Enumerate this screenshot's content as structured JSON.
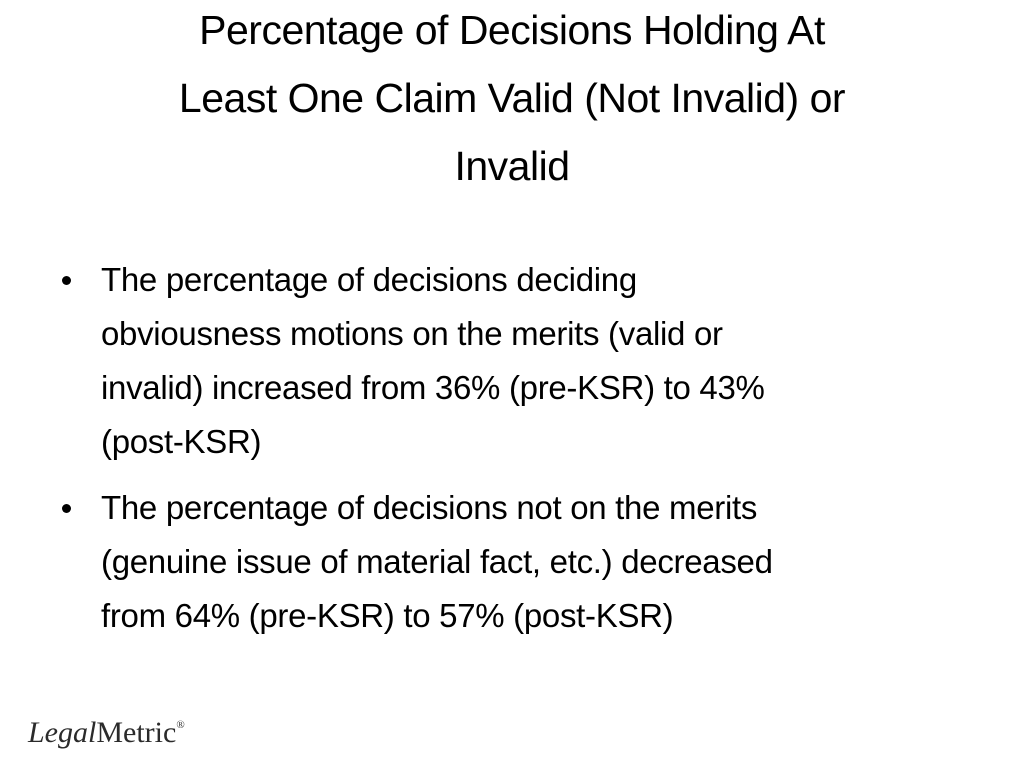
{
  "title_lines": [
    "Percentage of Decisions Holding At",
    "Least One Claim Valid (Not Invalid) or",
    "Invalid"
  ],
  "bullets": [
    {
      "lines": [
        "The percentage of decisions deciding",
        "obviousness motions on the merits (valid or",
        "invalid) increased from 36% (pre-KSR) to 43%",
        "(post-KSR)"
      ]
    },
    {
      "lines": [
        "The percentage of decisions not on the merits",
        "(genuine issue of material fact, etc.) decreased",
        "from 64% (pre-KSR) to 57% (post-KSR)"
      ]
    }
  ],
  "logo": {
    "italic": "Legal",
    "regular": "Metric",
    "mark": "®"
  }
}
